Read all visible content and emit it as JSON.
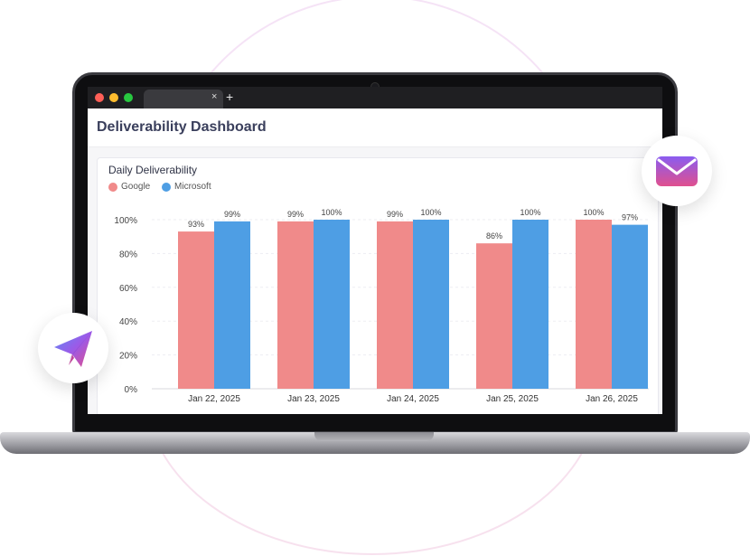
{
  "browser": {
    "tab_close_symbol": "×",
    "new_tab_symbol": "+"
  },
  "page": {
    "title": "Deliverability Dashboard"
  },
  "icons": {
    "mail": "mail-icon",
    "send": "paper-plane-icon"
  },
  "colors": {
    "google": "#f08a8a",
    "microsoft": "#4e9ee4",
    "title": "#3a3f5c"
  },
  "chart_data": {
    "type": "bar",
    "title": "Daily Deliverability",
    "categories": [
      "Jan 22, 2025",
      "Jan 23, 2025",
      "Jan 24, 2025",
      "Jan 25, 2025",
      "Jan 26, 2025"
    ],
    "series": [
      {
        "name": "Google",
        "color": "#f08a8a",
        "values": [
          93,
          99,
          99,
          86,
          100
        ]
      },
      {
        "name": "Microsoft",
        "color": "#4e9ee4",
        "values": [
          99,
          100,
          100,
          100,
          97
        ]
      }
    ],
    "data_labels": [
      [
        "93%",
        "99%",
        "99%",
        "86%",
        "100%"
      ],
      [
        "99%",
        "100%",
        "100%",
        "100%",
        "97%"
      ]
    ],
    "yticks": [
      "0%",
      "20%",
      "40%",
      "60%",
      "80%",
      "100%"
    ],
    "ylim": [
      0,
      100
    ],
    "grid": true,
    "legend": "top-left"
  }
}
